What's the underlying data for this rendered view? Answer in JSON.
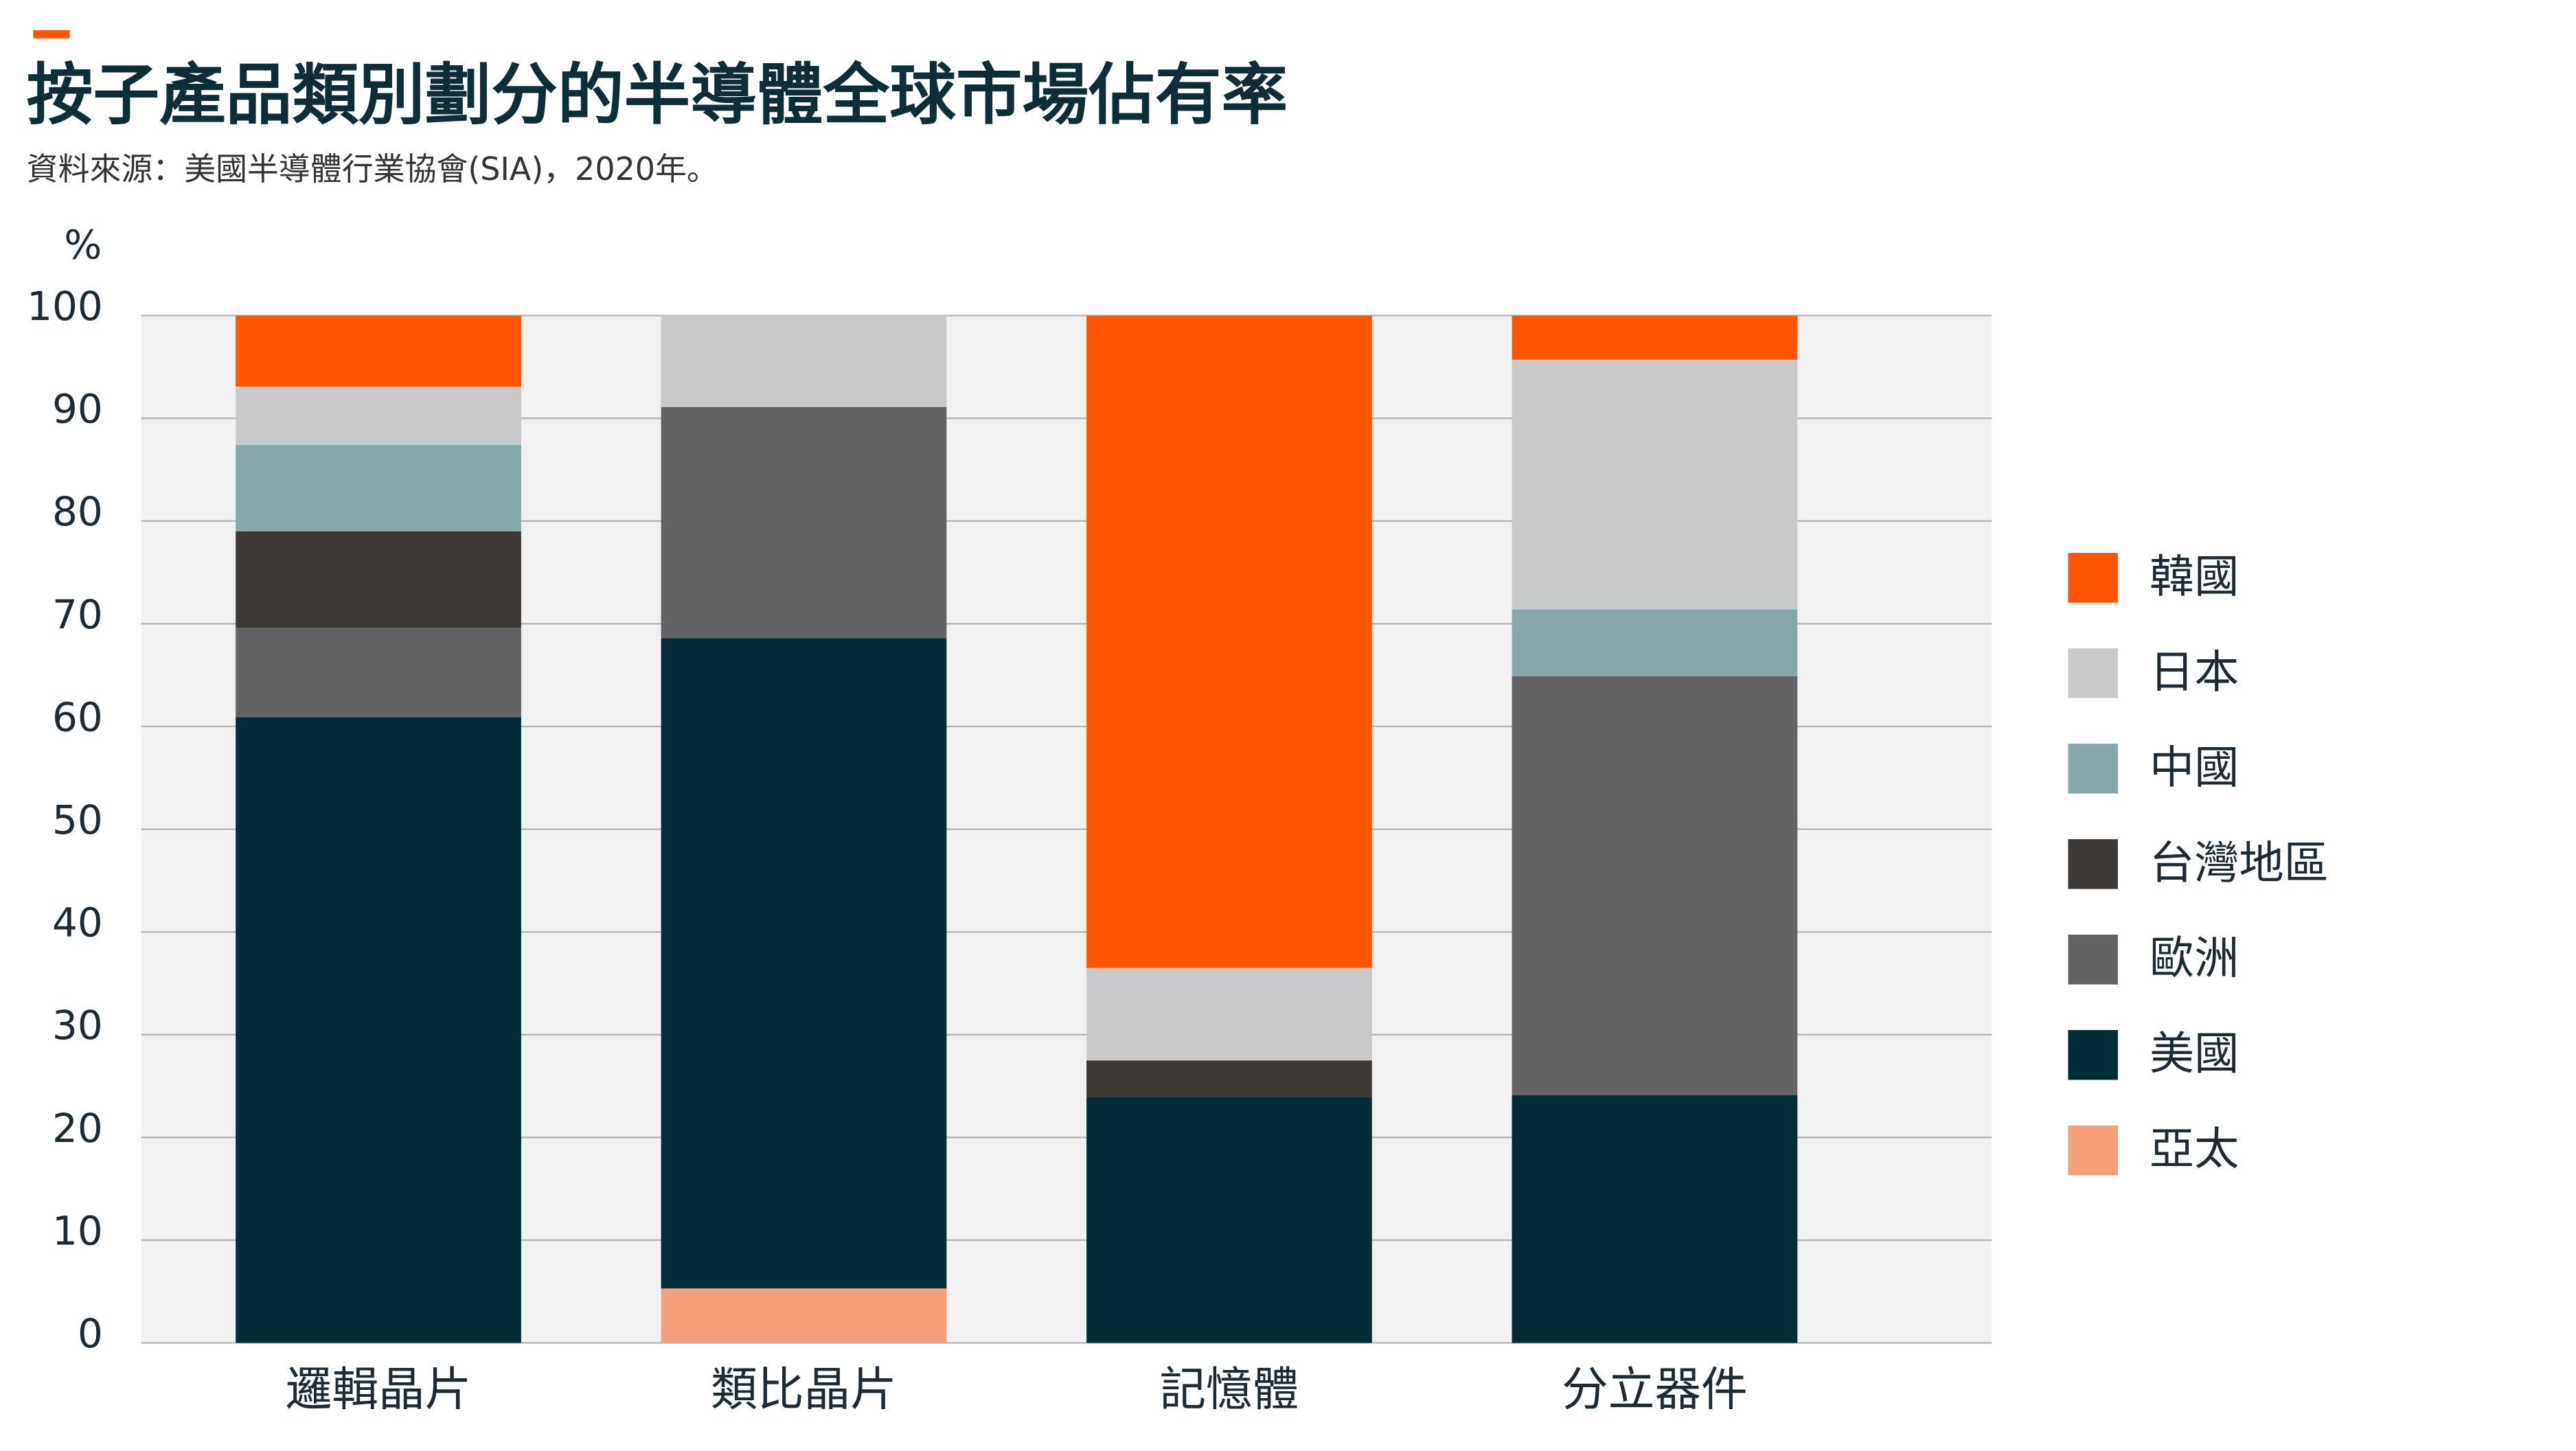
{
  "chart_data": {
    "type": "stacked_bar",
    "title": "按子產品類別劃分的半導體全球市場佔有率",
    "subtitle": "資料來源：美國半導體行業協會(SIA)，2020年。",
    "y_label": "%",
    "categories": [
      "邏輯晶片",
      "類比晶片",
      "記憶體",
      "分立器件"
    ],
    "series": [
      {
        "name": "韓國",
        "color": "#ff5500",
        "values": [
          6.9,
          0,
          63.5,
          4.3
        ]
      },
      {
        "name": "日本",
        "color": "#c8c9cb",
        "values": [
          5.7,
          8.9,
          9.0,
          24.3
        ]
      },
      {
        "name": "中國",
        "color": "#87a8aa",
        "values": [
          8.4,
          0,
          0,
          6.5
        ]
      },
      {
        "name": "台灣地區",
        "color": "#3d3937",
        "values": [
          9.4,
          0,
          3.6,
          0
        ]
      },
      {
        "name": "歐洲",
        "color": "#636366",
        "values": [
          8.7,
          22.5,
          0,
          40.8
        ]
      },
      {
        "name": "美國",
        "color": "#022d37",
        "values": [
          60.9,
          63.3,
          23.9,
          24.1
        ]
      },
      {
        "name": "亞太",
        "color": "#f5a07a",
        "values": [
          0,
          5.3,
          0,
          0
        ]
      }
    ],
    "ylim": [
      0,
      100
    ],
    "yticks": [
      0,
      10,
      20,
      30,
      40,
      50,
      60,
      70,
      80,
      90,
      100
    ],
    "grid": true,
    "legend": "right"
  }
}
